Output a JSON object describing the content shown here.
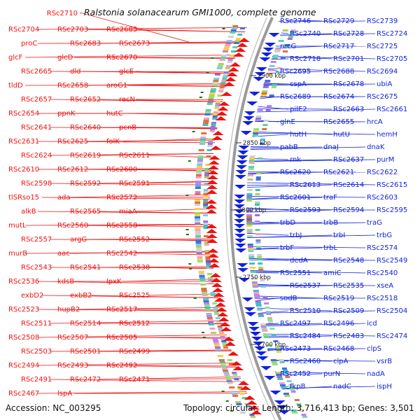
{
  "title_id": "RSc2710",
  "title": "Ralstonia solanacearum GMI1000, complete genome",
  "footer": {
    "accession": "Accession: NC_003295",
    "stats": "Topology: circular; Length: 3,716,413 bp; Genes: 3,501"
  },
  "colors": {
    "reverse": "#ee1111",
    "forward": "#1122dd",
    "backbone": "#9a9a9a",
    "dna": "#117711",
    "tick_text": "#222222"
  },
  "ticks": [
    {
      "label": "2900 kbp"
    },
    {
      "label": "2850 kbp"
    },
    {
      "label": "2800 kbp"
    },
    {
      "label": "2750 kbp"
    },
    {
      "label": "2700 kbp"
    }
  ],
  "left_labels": [
    "RSc2704",
    "RSc2703",
    "RSc2685",
    "proC",
    "RSc2683",
    "RSc2673",
    "glcF",
    "glcD",
    "RSc2670",
    "RSc2665",
    "dld",
    "glcE",
    "tldD",
    "RSc2658",
    "aroG1",
    "RSc2657",
    "RSc2652",
    "recN",
    "RSc2654",
    "ppnK",
    "hutC",
    "RSc2641",
    "RSc2640",
    "pcnB",
    "RSc2631",
    "RSc2625",
    "folK",
    "RSc2624",
    "RSc2619",
    "RSc2611",
    "RSc2610",
    "RSc2612",
    "RSc2600",
    "RSc2598",
    "RSc2592",
    "RSc2591",
    "tlSRso15",
    "ada",
    "RSc2572",
    "alkB",
    "RSc2565",
    "miaA",
    "mutL",
    "RSc2560",
    "RSc2558",
    "RSc2557",
    "argG",
    "RSc2552",
    "murB",
    "aac",
    "RSc2542",
    "RSc2543",
    "RSc2541",
    "RSc2538",
    "RSc2536",
    "kdsB",
    "lpxK",
    "exbD2",
    "exbB2",
    "RSc2525",
    "RSc2523",
    "hupB2",
    "RSc2517",
    "RSc2511",
    "RSc2514",
    "RSc2512",
    "RSc2508",
    "RSc2507",
    "RSc2505",
    "RSc2503",
    "RSc2501",
    "RSc2499",
    "RSc2494",
    "RSc2493",
    "RSc2492",
    "RSc2491",
    "RSc2472",
    "RSc2471",
    "RSc2467",
    "lspA"
  ],
  "right_labels": [
    "RSc2746",
    "RSc2729",
    "RSc2739",
    "RSc2740",
    "RSc2728",
    "RSc2724",
    "recG",
    "RSc2717",
    "RSc2725",
    "RSc2718",
    "RSc2701",
    "RSc2705",
    "RSc2695",
    "RSc2688",
    "RSc2694",
    "cspA",
    "RSc2678",
    "ubiA",
    "RSc2689",
    "RSc2674",
    "RSc2675",
    "pilE2",
    "RSc2663",
    "RSc2661",
    "glnE",
    "RSc2655",
    "hrcA",
    "hutH",
    "hutU",
    "hemH",
    "pabB",
    "dnaJ",
    "dnaK",
    "rnk",
    "RSc2637",
    "purM",
    "RSc2620",
    "RSc2621",
    "RSc2622",
    "RSc2613",
    "RSc2614",
    "RSc2615",
    "RSc2601",
    "traF",
    "RSc2603",
    "RSc2593",
    "RSc2594",
    "RSc2595",
    "trbD",
    "trbB",
    "traG",
    "trbJ",
    "trbI",
    "trbG",
    "trbF",
    "trbL",
    "RSc2574",
    "dedA",
    "RSc2548",
    "RSc2549",
    "RSc2551",
    "amiC",
    "RSc2540",
    "RSc2537",
    "RSc2535",
    "xseA",
    "sodB",
    "RSc2519",
    "RSc2518",
    "RSc2510",
    "RSc2509",
    "RSc2504",
    "RSc2497",
    "RSc2496",
    "icd",
    "RSc2484",
    "RSc2483",
    "RSc2474",
    "RSc2473",
    "RSc2468",
    "clpS",
    "RSc2460",
    "clpA",
    "vsrB",
    "RSc2452",
    "purN",
    "nadA",
    "fkpB",
    "nadC",
    "ispH"
  ]
}
